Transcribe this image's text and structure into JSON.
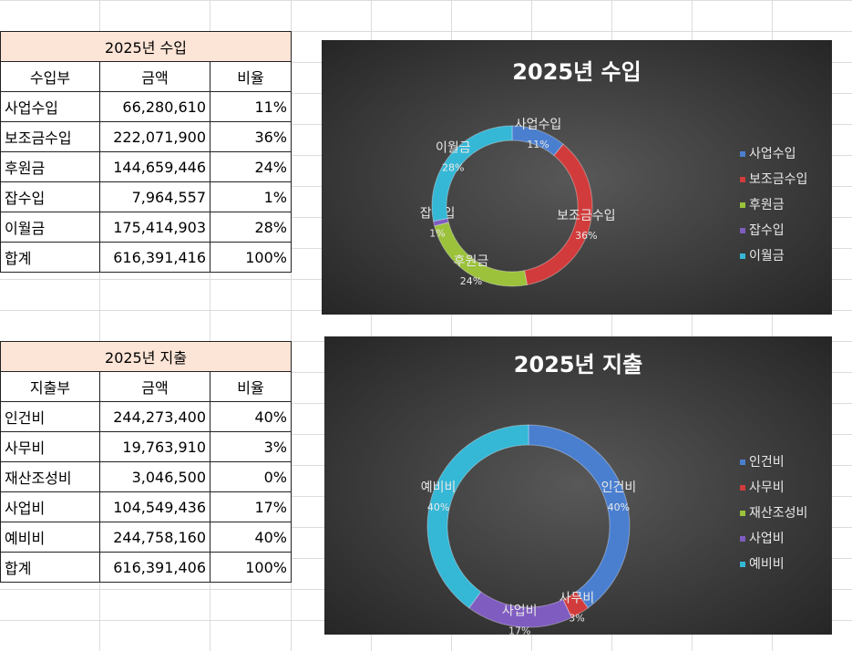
{
  "tables": [
    {
      "title": "2025년 수입",
      "headers": [
        "수입부",
        "금액",
        "비율"
      ],
      "rows": [
        [
          "사업수입",
          "66,280,610",
          "11%"
        ],
        [
          "보조금수입",
          "222,071,900",
          "36%"
        ],
        [
          "후원금",
          "144,659,446",
          "24%"
        ],
        [
          "잡수입",
          "7,964,557",
          "1%"
        ],
        [
          "이월금",
          "175,414,903",
          "28%"
        ],
        [
          "합계",
          "616,391,416",
          "100%"
        ]
      ]
    },
    {
      "title": "2025년 지출",
      "headers": [
        "지출부",
        "금액",
        "비율"
      ],
      "rows": [
        [
          "인건비",
          "244,273,400",
          "40%"
        ],
        [
          "사무비",
          "19,763,910",
          "3%"
        ],
        [
          "재산조성비",
          "3,046,500",
          "0%"
        ],
        [
          "사업비",
          "104,549,436",
          "17%"
        ],
        [
          "예비비",
          "244,758,160",
          "40%"
        ],
        [
          "합계",
          "616,391,406",
          "100%"
        ]
      ]
    }
  ],
  "chart_data": [
    {
      "type": "doughnut",
      "title": "2025년 수입",
      "categories": [
        "사업수입",
        "보조금수입",
        "후원금",
        "잡수입",
        "이월금"
      ],
      "values": [
        11,
        36,
        24,
        1,
        28
      ],
      "value_labels": [
        "11%",
        "36%",
        "24%",
        "1%",
        "28%"
      ],
      "colors": [
        "#4a7fd0",
        "#d23b3b",
        "#9bc23a",
        "#7f5cc0",
        "#35b7d6"
      ],
      "legend": "right"
    },
    {
      "type": "doughnut",
      "title": "2025년 지출",
      "categories": [
        "인건비",
        "사무비",
        "재산조성비",
        "사업비",
        "예비비"
      ],
      "values": [
        40,
        3,
        0,
        17,
        40
      ],
      "value_labels": [
        "40%",
        "3%",
        null,
        "17%",
        "40%"
      ],
      "colors": [
        "#4a7fd0",
        "#d23b3b",
        "#9bc23a",
        "#7f5cc0",
        "#35b7d6"
      ],
      "legend": "right"
    }
  ]
}
